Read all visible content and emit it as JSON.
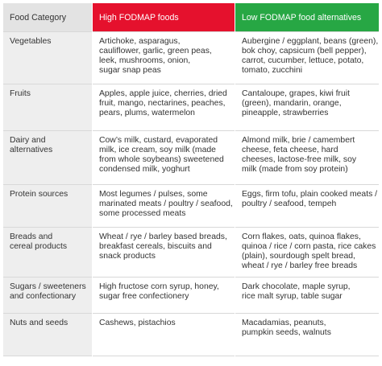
{
  "table": {
    "header": [
      "Food Category",
      "High FODMAP foods",
      "Low FODMAP food alternatives"
    ],
    "rows": [
      [
        [
          "Vegetables"
        ],
        [
          "Artichoke, asparagus,",
          "cauliflower, garlic, green peas,",
          "leek, mushrooms, onion,",
          "sugar snap peas"
        ],
        [
          "Aubergine / eggplant, beans (green),",
          "bok choy, capsicum (bell pepper),",
          "carrot, cucumber, lettuce, potato,",
          "tomato, zucchini"
        ]
      ],
      [
        [
          "Fruits"
        ],
        [
          "Apples, apple juice, cherries, dried",
          "fruit, mango, nectarines, peaches,",
          "pears, plums, watermelon"
        ],
        [
          "Cantaloupe, grapes, kiwi fruit",
          "(green), mandarin, orange,",
          "pineapple, strawberries"
        ]
      ],
      [
        [
          "Dairy and",
          "alternatives"
        ],
        [
          "Cow’s milk, custard, evaporated",
          "milk, ice cream, soy milk (made",
          "from whole soybeans) sweetened",
          "condensed milk, yoghurt"
        ],
        [
          "Almond milk, brie / camembert",
          "cheese, feta cheese, hard",
          "cheeses, lactose-free milk, soy",
          "milk (made from soy protein)"
        ]
      ],
      [
        [
          "Protein sources"
        ],
        [
          "Most legumes / pulses, some",
          "marinated meats / poultry / seafood,",
          "some processed meats"
        ],
        [
          "Eggs, firm tofu, plain cooked meats /",
          "poultry / seafood, tempeh"
        ]
      ],
      [
        [
          "Breads and",
          "cereal products"
        ],
        [
          "Wheat / rye / barley based breads,",
          "breakfast cereals, biscuits and",
          "snack products"
        ],
        [
          "Corn flakes, oats, quinoa flakes,",
          "quinoa / rice / corn pasta, rice cakes",
          "(plain), sourdough spelt bread,",
          "wheat / rye / barley free breads"
        ]
      ],
      [
        [
          "Sugars / sweeteners",
          "and confectionary"
        ],
        [
          "High fructose corn syrup, honey,",
          "sugar free confectionery"
        ],
        [
          "Dark chocolate, maple syrup,",
          "rice malt syrup, table sugar"
        ]
      ],
      [
        [
          "Nuts and seeds"
        ],
        [
          "Cashews, pistachios"
        ],
        [
          "Macadamias, peanuts,",
          "pumpkin seeds, walnuts"
        ]
      ]
    ]
  }
}
